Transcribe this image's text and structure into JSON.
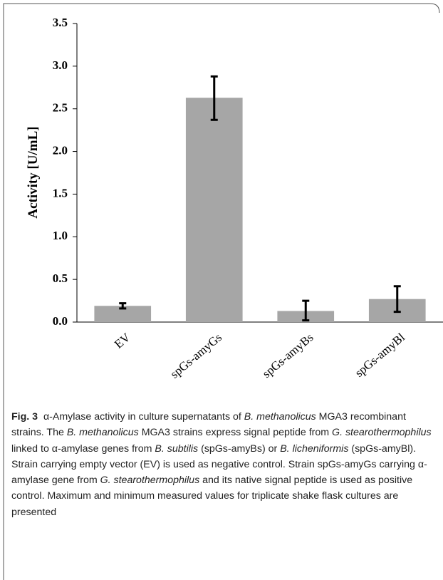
{
  "chart_data": {
    "type": "bar",
    "y_label": "Activity [U/mL]",
    "categories": [
      "EV",
      "spGs-amyGs",
      "spGs-amyBs",
      "spGs-amyBl"
    ],
    "values": [
      0.19,
      2.63,
      0.13,
      0.27
    ],
    "min": [
      0.16,
      2.37,
      0.02,
      0.12
    ],
    "max": [
      0.22,
      2.88,
      0.25,
      0.42
    ],
    "color": "#a6a6a6",
    "ylim": [
      0,
      3.5
    ],
    "yticks": [
      {
        "value": 0,
        "label": "0.0"
      },
      0.5,
      {
        "value": 1,
        "label": "1.0"
      },
      1.5,
      {
        "value": 2,
        "label": "2.0"
      },
      2.5,
      {
        "value": 3,
        "label": "3.0"
      },
      3.5
    ]
  },
  "caption": {
    "label": "Fig. 3",
    "runs": [
      {
        "text": "α-Amylase activity in culture supernatants of ",
        "italic": false
      },
      {
        "text": "B. methanolicus",
        "italic": true
      },
      {
        "text": " MGA3 recombinant strains. The ",
        "italic": false
      },
      {
        "text": "B. methanolicus",
        "italic": true
      },
      {
        "text": " MGA3 strains express signal peptide from ",
        "italic": false
      },
      {
        "text": "G. stearothermophilus",
        "italic": true
      },
      {
        "text": " linked to α-amylase genes from ",
        "italic": false
      },
      {
        "text": "B. subtilis",
        "italic": true
      },
      {
        "text": " (spGs-amyBs) or ",
        "italic": false
      },
      {
        "text": "B. licheniformis",
        "italic": true
      },
      {
        "text": " (spGs-amyBl). Strain carrying empty vector (EV) is used as negative control. Strain spGs-amyGs carrying α-amylase gene from ",
        "italic": false
      },
      {
        "text": "G. stearothermophilus",
        "italic": true
      },
      {
        "text": " and its native signal peptide is used as positive control. Maximum and minimum measured values for triplicate shake flask cultures are presented",
        "italic": false
      }
    ]
  }
}
